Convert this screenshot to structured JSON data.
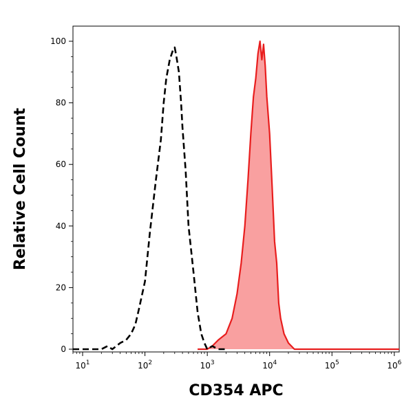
{
  "chart_data": {
    "type": "area",
    "xlabel": "CD354 APC",
    "ylabel": "Relative Cell Count",
    "x_scale": "log",
    "xlim": [
      7,
      1200000
    ],
    "ylim": [
      0,
      105
    ],
    "x_ticks": [
      {
        "base": "10",
        "exp": "1",
        "value": 10
      },
      {
        "base": "10",
        "exp": "2",
        "value": 100
      },
      {
        "base": "10",
        "exp": "3",
        "value": 1000
      },
      {
        "base": "10",
        "exp": "4",
        "value": 10000
      },
      {
        "base": "10",
        "exp": "5",
        "value": 100000
      },
      {
        "base": "10",
        "exp": "6",
        "value": 1000000
      }
    ],
    "y_ticks": [
      "0",
      "20",
      "40",
      "60",
      "80",
      "100"
    ],
    "grid": false,
    "series": [
      {
        "style": "dashed-outline",
        "color": "#000000",
        "x": [
          7,
          20,
          25,
          30,
          40,
          50,
          60,
          70,
          80,
          100,
          120,
          150,
          180,
          200,
          220,
          250,
          280,
          300,
          320,
          350,
          380,
          400,
          450,
          500,
          600,
          700,
          800,
          900,
          1000,
          1200,
          1500,
          2000
        ],
        "y": [
          0,
          0,
          1,
          0,
          2,
          3,
          5,
          8,
          13,
          22,
          38,
          55,
          68,
          80,
          88,
          94,
          97,
          98,
          95,
          90,
          80,
          72,
          58,
          40,
          25,
          12,
          5,
          2,
          0,
          1,
          0,
          0
        ]
      },
      {
        "style": "filled",
        "color": "#e81d1d",
        "fill": "#f9a0a0",
        "x": [
          700,
          1000,
          1200,
          1500,
          2000,
          2500,
          3000,
          3500,
          4000,
          4500,
          5000,
          5500,
          6000,
          6500,
          7000,
          7500,
          8000,
          8500,
          9000,
          10000,
          11000,
          12000,
          13000,
          14000,
          15000,
          17000,
          20000,
          25000,
          30000,
          1200000
        ],
        "y": [
          0,
          0,
          1,
          3,
          5,
          10,
          18,
          28,
          40,
          55,
          70,
          82,
          88,
          96,
          100,
          94,
          99,
          92,
          82,
          70,
          52,
          35,
          28,
          15,
          10,
          5,
          2,
          0,
          0,
          0
        ]
      }
    ]
  }
}
